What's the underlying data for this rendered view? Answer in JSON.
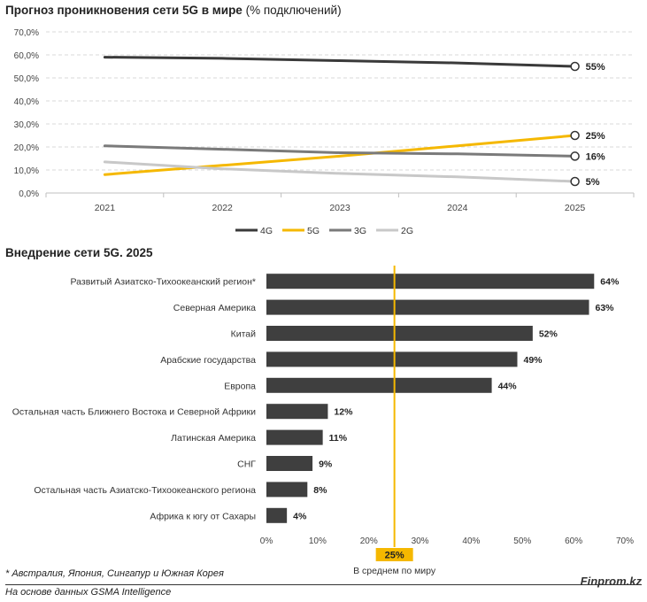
{
  "line_title": {
    "bold": "Прогноз проникновения сети 5G в мире",
    "normal": " (% подключений)"
  },
  "bar_title": "Внедрение сети 5G. 2025",
  "average": {
    "value": "25%",
    "label": "В среднем по миру",
    "color": "#f5b800"
  },
  "footnote": "* Австралия, Япония, Сингапур и Южная Корея",
  "source": "На основе данных GSMA Intelligence",
  "brand": "Finprom.kz",
  "chart_data": [
    {
      "type": "line",
      "x": [
        "2021",
        "2022",
        "2023",
        "2024",
        "2025"
      ],
      "ylim": [
        0,
        70
      ],
      "yticks": [
        "0,0%",
        "10,0%",
        "20,0%",
        "30,0%",
        "40,0%",
        "50,0%",
        "60,0%",
        "70,0%"
      ],
      "grid": true,
      "legend_position": "bottom",
      "series": [
        {
          "name": "4G",
          "color": "#3a3a3a",
          "values": [
            59,
            58.5,
            57.5,
            56.5,
            55
          ],
          "end_label": "55%"
        },
        {
          "name": "5G",
          "color": "#f5b800",
          "values": [
            8,
            12,
            16,
            20.5,
            25
          ],
          "end_label": "25%"
        },
        {
          "name": "3G",
          "color": "#7a7a7a",
          "values": [
            20.5,
            19,
            17.5,
            17,
            16
          ],
          "end_label": "16%"
        },
        {
          "name": "2G",
          "color": "#c8c8c8",
          "values": [
            13.5,
            10.5,
            8.5,
            7,
            5
          ],
          "end_label": "5%"
        }
      ]
    },
    {
      "type": "bar",
      "orientation": "horizontal",
      "categories": [
        "Развитый Азиатско-Тихоокеанский регион*",
        "Северная Америка",
        "Китай",
        "Арабские государства",
        "Европа",
        "Остальная часть Ближнего Востока и Северной Африки",
        "Латинская Америка",
        "СНГ",
        "Остальная часть Азиатско-Тихоокеанского региона",
        "Африка к югу от Сахары"
      ],
      "values": [
        64,
        63,
        52,
        49,
        44,
        12,
        11,
        9,
        8,
        4
      ],
      "value_labels": [
        "64%",
        "63%",
        "52%",
        "49%",
        "44%",
        "12%",
        "11%",
        "9%",
        "8%",
        "4%"
      ],
      "xlim": [
        0,
        70
      ],
      "xticks": [
        "0%",
        "10%",
        "20%",
        "30%",
        "40%",
        "50%",
        "60%",
        "70%"
      ],
      "bar_color": "#3f3f3f",
      "reference_line": 25
    }
  ]
}
